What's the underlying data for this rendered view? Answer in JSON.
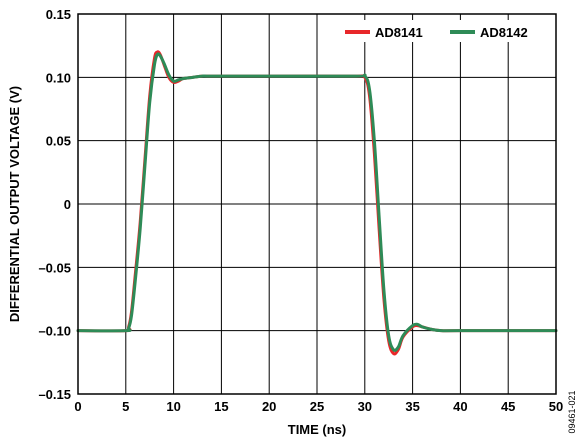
{
  "chart_data": {
    "type": "line",
    "title": "",
    "xlabel": "TIME (ns)",
    "ylabel": "DIFFERENTIAL OUTPUT VOLTAGE (V)",
    "xlim": [
      0,
      50
    ],
    "ylim": [
      -0.15,
      0.15
    ],
    "x_ticks": [
      0,
      5,
      10,
      15,
      20,
      25,
      30,
      35,
      40,
      45,
      50
    ],
    "y_ticks": [
      {
        "value": 0.15,
        "label": "0.15"
      },
      {
        "value": 0.1,
        "label": "0.10"
      },
      {
        "value": 0.05,
        "label": "0.05"
      },
      {
        "value": 0,
        "label": "0"
      },
      {
        "value": -0.05,
        "label": "–0.05"
      },
      {
        "value": -0.1,
        "label": "–0.10"
      },
      {
        "value": -0.15,
        "label": "–0.15"
      }
    ],
    "grid": true,
    "legend_position": "top-right",
    "figure_id": "09461-021",
    "series": [
      {
        "name": "AD8141",
        "color": "#e8272a",
        "x": [
          0,
          5.0,
          5.3,
          5.6,
          6.0,
          6.5,
          7.0,
          7.5,
          8.0,
          8.3,
          8.6,
          9.0,
          9.5,
          10.0,
          10.5,
          11.0,
          12.0,
          13.0,
          14.0,
          20.0,
          29.0,
          30.0,
          30.5,
          31.0,
          31.5,
          32.0,
          32.5,
          33.0,
          33.5,
          34.0,
          35.0,
          35.5,
          36.0,
          37.0,
          38.0,
          40.0,
          50.0
        ],
        "y": [
          -0.1,
          -0.1,
          -0.097,
          -0.085,
          -0.055,
          -0.015,
          0.035,
          0.085,
          0.115,
          0.12,
          0.118,
          0.11,
          0.1,
          0.096,
          0.097,
          0.099,
          0.1,
          0.101,
          0.101,
          0.101,
          0.101,
          0.1,
          0.085,
          0.04,
          -0.02,
          -0.075,
          -0.108,
          -0.118,
          -0.115,
          -0.105,
          -0.097,
          -0.096,
          -0.097,
          -0.099,
          -0.1,
          -0.1,
          -0.1
        ]
      },
      {
        "name": "AD8142",
        "color": "#2e8b57",
        "x": [
          0,
          5.0,
          5.3,
          5.6,
          6.0,
          6.5,
          7.0,
          7.5,
          8.0,
          8.3,
          8.6,
          9.0,
          9.5,
          10.0,
          10.5,
          11.0,
          12.0,
          13.0,
          14.0,
          20.0,
          29.0,
          30.0,
          30.5,
          31.0,
          31.5,
          32.0,
          32.5,
          33.0,
          33.5,
          34.0,
          35.0,
          35.5,
          36.0,
          37.0,
          38.0,
          40.0,
          50.0
        ],
        "y": [
          -0.1,
          -0.1,
          -0.098,
          -0.088,
          -0.06,
          -0.02,
          0.03,
          0.08,
          0.11,
          0.118,
          0.117,
          0.111,
          0.102,
          0.097,
          0.098,
          0.099,
          0.1,
          0.101,
          0.101,
          0.101,
          0.101,
          0.101,
          0.09,
          0.05,
          -0.01,
          -0.068,
          -0.104,
          -0.115,
          -0.113,
          -0.104,
          -0.096,
          -0.095,
          -0.097,
          -0.099,
          -0.1,
          -0.1,
          -0.1
        ]
      }
    ]
  }
}
